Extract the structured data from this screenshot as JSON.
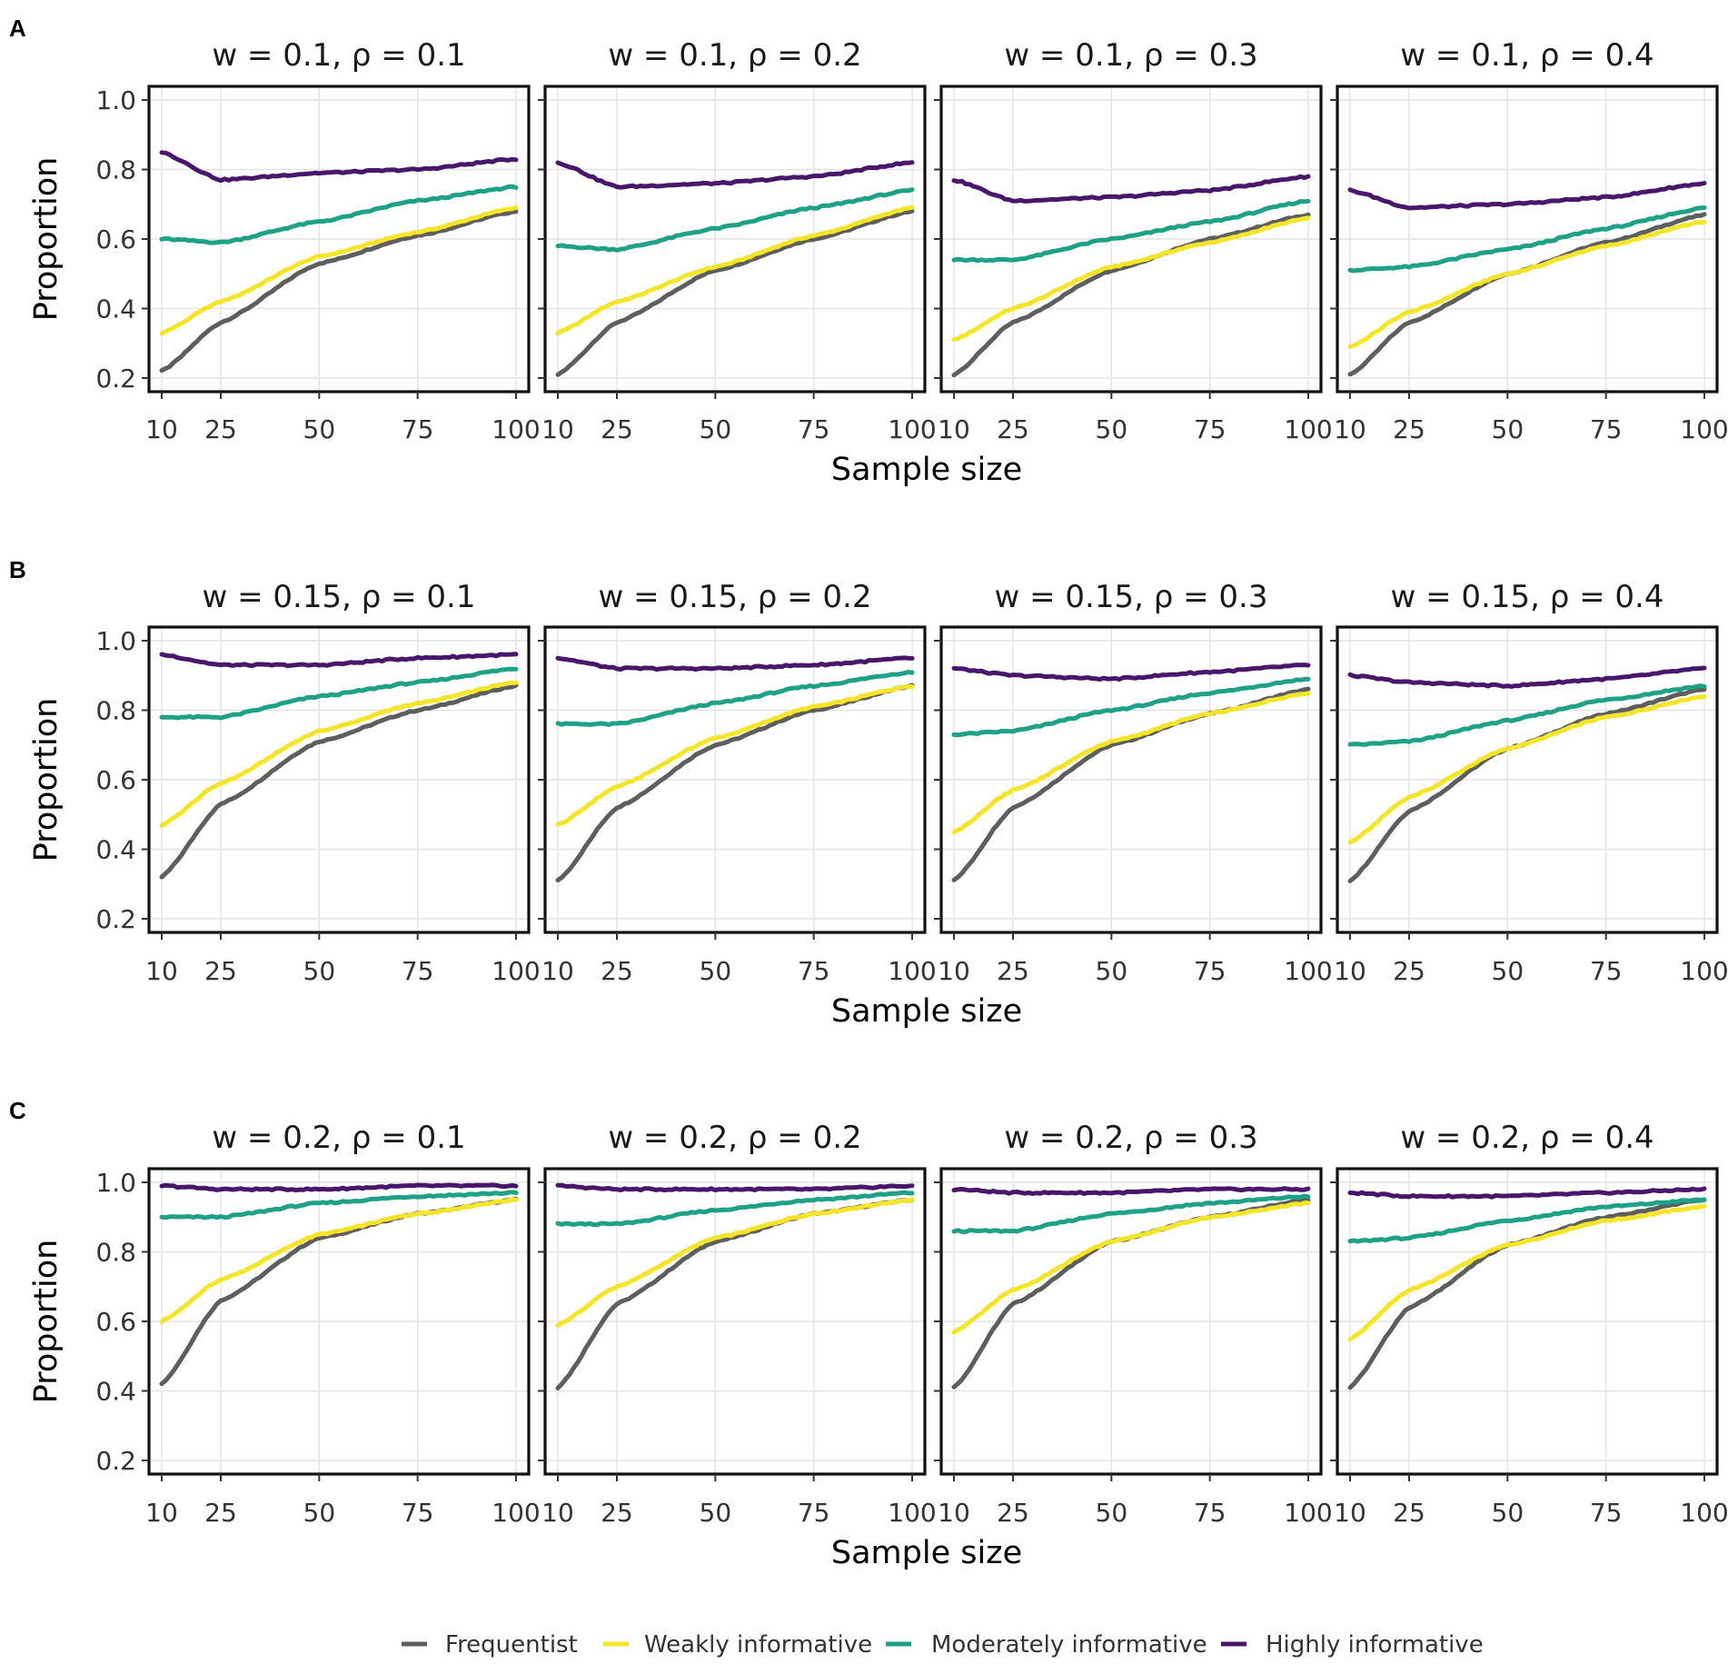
{
  "figure": {
    "panel_letters": [
      "A",
      "B",
      "C"
    ],
    "xlabel": "Sample size",
    "ylabel": "Proportion",
    "legend": [
      {
        "label": "Frequentist",
        "color": "#5e5e5e"
      },
      {
        "label": "Weakly informative",
        "color": "#f4e52a"
      },
      {
        "label": "Moderately informative",
        "color": "#1fa187"
      },
      {
        "label": "Highly informative",
        "color": "#48176c"
      }
    ]
  },
  "chart_data": [
    {
      "type": "line",
      "panel": "A",
      "title": "w = 0.1, ρ = 0.1",
      "xlim": [
        10,
        100
      ],
      "ylim": [
        0.2,
        1.0
      ],
      "x": [
        10,
        25,
        50,
        75,
        100
      ],
      "xticks": [
        "10",
        "25",
        "50",
        "75",
        "100"
      ],
      "yticks": [
        "0.2",
        "0.4",
        "0.6",
        "0.8",
        "1.0"
      ],
      "series": [
        {
          "name": "Frequentist",
          "values": [
            0.22,
            0.36,
            0.53,
            0.61,
            0.68
          ]
        },
        {
          "name": "Weakly informative",
          "values": [
            0.33,
            0.42,
            0.55,
            0.62,
            0.69
          ]
        },
        {
          "name": "Moderately informative",
          "values": [
            0.6,
            0.59,
            0.65,
            0.71,
            0.75
          ]
        },
        {
          "name": "Highly informative",
          "values": [
            0.85,
            0.77,
            0.79,
            0.8,
            0.83
          ]
        }
      ]
    },
    {
      "type": "line",
      "panel": "A",
      "title": "w = 0.1, ρ = 0.2",
      "xlim": [
        10,
        100
      ],
      "ylim": [
        0.2,
        1.0
      ],
      "x": [
        10,
        25,
        50,
        75,
        100
      ],
      "xticks": [
        "10",
        "25",
        "50",
        "75",
        "100"
      ],
      "yticks": [
        "0.2",
        "0.4",
        "0.6",
        "0.8",
        "1.0"
      ],
      "series": [
        {
          "name": "Frequentist",
          "values": [
            0.21,
            0.36,
            0.51,
            0.6,
            0.68
          ]
        },
        {
          "name": "Weakly informative",
          "values": [
            0.33,
            0.42,
            0.52,
            0.61,
            0.69
          ]
        },
        {
          "name": "Moderately informative",
          "values": [
            0.58,
            0.57,
            0.63,
            0.69,
            0.74
          ]
        },
        {
          "name": "Highly informative",
          "values": [
            0.82,
            0.75,
            0.76,
            0.78,
            0.82
          ]
        }
      ]
    },
    {
      "type": "line",
      "panel": "A",
      "title": "w = 0.1, ρ = 0.3",
      "xlim": [
        10,
        100
      ],
      "ylim": [
        0.2,
        1.0
      ],
      "x": [
        10,
        25,
        50,
        75,
        100
      ],
      "xticks": [
        "10",
        "25",
        "50",
        "75",
        "100"
      ],
      "yticks": [
        "0.2",
        "0.4",
        "0.6",
        "0.8",
        "1.0"
      ],
      "series": [
        {
          "name": "Frequentist",
          "values": [
            0.21,
            0.36,
            0.51,
            0.6,
            0.67
          ]
        },
        {
          "name": "Weakly informative",
          "values": [
            0.31,
            0.4,
            0.52,
            0.59,
            0.66
          ]
        },
        {
          "name": "Moderately informative",
          "values": [
            0.54,
            0.54,
            0.6,
            0.65,
            0.71
          ]
        },
        {
          "name": "Highly informative",
          "values": [
            0.77,
            0.71,
            0.72,
            0.74,
            0.78
          ]
        }
      ]
    },
    {
      "type": "line",
      "panel": "A",
      "title": "w = 0.1, ρ = 0.4",
      "xlim": [
        10,
        100
      ],
      "ylim": [
        0.2,
        1.0
      ],
      "x": [
        10,
        25,
        50,
        75,
        100
      ],
      "xticks": [
        "10",
        "25",
        "50",
        "75",
        "100"
      ],
      "yticks": [
        "0.2",
        "0.4",
        "0.6",
        "0.8",
        "1.0"
      ],
      "series": [
        {
          "name": "Frequentist",
          "values": [
            0.21,
            0.36,
            0.5,
            0.59,
            0.67
          ]
        },
        {
          "name": "Weakly informative",
          "values": [
            0.29,
            0.39,
            0.5,
            0.58,
            0.65
          ]
        },
        {
          "name": "Moderately informative",
          "values": [
            0.51,
            0.52,
            0.57,
            0.63,
            0.69
          ]
        },
        {
          "name": "Highly informative",
          "values": [
            0.74,
            0.69,
            0.7,
            0.72,
            0.76
          ]
        }
      ]
    },
    {
      "type": "line",
      "panel": "B",
      "title": "w = 0.15, ρ = 0.1",
      "xlim": [
        10,
        100
      ],
      "ylim": [
        0.2,
        1.0
      ],
      "x": [
        10,
        25,
        50,
        75,
        100
      ],
      "xticks": [
        "10",
        "25",
        "50",
        "75",
        "100"
      ],
      "yticks": [
        "0.2",
        "0.4",
        "0.6",
        "0.8",
        "1.0"
      ],
      "series": [
        {
          "name": "Frequentist",
          "values": [
            0.32,
            0.53,
            0.71,
            0.8,
            0.87
          ]
        },
        {
          "name": "Weakly informative",
          "values": [
            0.47,
            0.59,
            0.74,
            0.82,
            0.88
          ]
        },
        {
          "name": "Moderately informative",
          "values": [
            0.78,
            0.78,
            0.84,
            0.88,
            0.92
          ]
        },
        {
          "name": "Highly informative",
          "values": [
            0.96,
            0.93,
            0.93,
            0.95,
            0.96
          ]
        }
      ]
    },
    {
      "type": "line",
      "panel": "B",
      "title": "w = 0.15, ρ = 0.2",
      "xlim": [
        10,
        100
      ],
      "ylim": [
        0.2,
        1.0
      ],
      "x": [
        10,
        25,
        50,
        75,
        100
      ],
      "xticks": [
        "10",
        "25",
        "50",
        "75",
        "100"
      ],
      "yticks": [
        "0.2",
        "0.4",
        "0.6",
        "0.8",
        "1.0"
      ],
      "series": [
        {
          "name": "Frequentist",
          "values": [
            0.31,
            0.52,
            0.7,
            0.8,
            0.87
          ]
        },
        {
          "name": "Weakly informative",
          "values": [
            0.47,
            0.58,
            0.72,
            0.81,
            0.87
          ]
        },
        {
          "name": "Moderately informative",
          "values": [
            0.76,
            0.76,
            0.82,
            0.87,
            0.91
          ]
        },
        {
          "name": "Highly informative",
          "values": [
            0.95,
            0.92,
            0.92,
            0.93,
            0.95
          ]
        }
      ]
    },
    {
      "type": "line",
      "panel": "B",
      "title": "w = 0.15, ρ = 0.3",
      "xlim": [
        10,
        100
      ],
      "ylim": [
        0.2,
        1.0
      ],
      "x": [
        10,
        25,
        50,
        75,
        100
      ],
      "xticks": [
        "10",
        "25",
        "50",
        "75",
        "100"
      ],
      "yticks": [
        "0.2",
        "0.4",
        "0.6",
        "0.8",
        "1.0"
      ],
      "series": [
        {
          "name": "Frequentist",
          "values": [
            0.31,
            0.52,
            0.7,
            0.79,
            0.86
          ]
        },
        {
          "name": "Weakly informative",
          "values": [
            0.45,
            0.57,
            0.71,
            0.79,
            0.85
          ]
        },
        {
          "name": "Moderately informative",
          "values": [
            0.73,
            0.74,
            0.8,
            0.85,
            0.89
          ]
        },
        {
          "name": "Highly informative",
          "values": [
            0.92,
            0.9,
            0.89,
            0.91,
            0.93
          ]
        }
      ]
    },
    {
      "type": "line",
      "panel": "B",
      "title": "w = 0.15, ρ = 0.4",
      "xlim": [
        10,
        100
      ],
      "ylim": [
        0.2,
        1.0
      ],
      "x": [
        10,
        25,
        50,
        75,
        100
      ],
      "xticks": [
        "10",
        "25",
        "50",
        "75",
        "100"
      ],
      "yticks": [
        "0.2",
        "0.4",
        "0.6",
        "0.8",
        "1.0"
      ],
      "series": [
        {
          "name": "Frequentist",
          "values": [
            0.31,
            0.51,
            0.69,
            0.79,
            0.86
          ]
        },
        {
          "name": "Weakly informative",
          "values": [
            0.42,
            0.55,
            0.69,
            0.78,
            0.84
          ]
        },
        {
          "name": "Moderately informative",
          "values": [
            0.7,
            0.71,
            0.77,
            0.83,
            0.87
          ]
        },
        {
          "name": "Highly informative",
          "values": [
            0.9,
            0.88,
            0.87,
            0.89,
            0.92
          ]
        }
      ]
    },
    {
      "type": "line",
      "panel": "C",
      "title": "w = 0.2, ρ = 0.1",
      "xlim": [
        10,
        100
      ],
      "ylim": [
        0.2,
        1.0
      ],
      "x": [
        10,
        25,
        50,
        75,
        100
      ],
      "xticks": [
        "10",
        "25",
        "50",
        "75",
        "100"
      ],
      "yticks": [
        "0.2",
        "0.4",
        "0.6",
        "0.8",
        "1.0"
      ],
      "series": [
        {
          "name": "Frequentist",
          "values": [
            0.42,
            0.66,
            0.84,
            0.91,
            0.95
          ]
        },
        {
          "name": "Weakly informative",
          "values": [
            0.6,
            0.72,
            0.85,
            0.91,
            0.95
          ]
        },
        {
          "name": "Moderately informative",
          "values": [
            0.9,
            0.9,
            0.94,
            0.96,
            0.97
          ]
        },
        {
          "name": "Highly informative",
          "values": [
            0.99,
            0.98,
            0.98,
            0.99,
            0.99
          ]
        }
      ]
    },
    {
      "type": "line",
      "panel": "C",
      "title": "w = 0.2, ρ = 0.2",
      "xlim": [
        10,
        100
      ],
      "ylim": [
        0.2,
        1.0
      ],
      "x": [
        10,
        25,
        50,
        75,
        100
      ],
      "xticks": [
        "10",
        "25",
        "50",
        "75",
        "100"
      ],
      "yticks": [
        "0.2",
        "0.4",
        "0.6",
        "0.8",
        "1.0"
      ],
      "series": [
        {
          "name": "Frequentist",
          "values": [
            0.41,
            0.65,
            0.83,
            0.91,
            0.95
          ]
        },
        {
          "name": "Weakly informative",
          "values": [
            0.59,
            0.7,
            0.84,
            0.91,
            0.95
          ]
        },
        {
          "name": "Moderately informative",
          "values": [
            0.88,
            0.88,
            0.92,
            0.95,
            0.97
          ]
        },
        {
          "name": "Highly informative",
          "values": [
            0.99,
            0.98,
            0.98,
            0.98,
            0.99
          ]
        }
      ]
    },
    {
      "type": "line",
      "panel": "C",
      "title": "w = 0.2, ρ = 0.3",
      "xlim": [
        10,
        100
      ],
      "ylim": [
        0.2,
        1.0
      ],
      "x": [
        10,
        25,
        50,
        75,
        100
      ],
      "xticks": [
        "10",
        "25",
        "50",
        "75",
        "100"
      ],
      "yticks": [
        "0.2",
        "0.4",
        "0.6",
        "0.8",
        "1.0"
      ],
      "series": [
        {
          "name": "Frequentist",
          "values": [
            0.41,
            0.65,
            0.83,
            0.9,
            0.95
          ]
        },
        {
          "name": "Weakly informative",
          "values": [
            0.57,
            0.69,
            0.83,
            0.9,
            0.94
          ]
        },
        {
          "name": "Moderately informative",
          "values": [
            0.86,
            0.86,
            0.91,
            0.94,
            0.96
          ]
        },
        {
          "name": "Highly informative",
          "values": [
            0.98,
            0.97,
            0.97,
            0.98,
            0.98
          ]
        }
      ]
    },
    {
      "type": "line",
      "panel": "C",
      "title": "w = 0.2, ρ = 0.4",
      "xlim": [
        10,
        100
      ],
      "ylim": [
        0.2,
        1.0
      ],
      "x": [
        10,
        25,
        50,
        75,
        100
      ],
      "xticks": [
        "10",
        "25",
        "50",
        "75",
        "100"
      ],
      "yticks": [
        "0.2",
        "0.4",
        "0.6",
        "0.8",
        "1.0"
      ],
      "series": [
        {
          "name": "Frequentist",
          "values": [
            0.41,
            0.64,
            0.82,
            0.9,
            0.95
          ]
        },
        {
          "name": "Weakly informative",
          "values": [
            0.55,
            0.69,
            0.82,
            0.89,
            0.93
          ]
        },
        {
          "name": "Moderately informative",
          "values": [
            0.83,
            0.84,
            0.89,
            0.93,
            0.95
          ]
        },
        {
          "name": "Highly informative",
          "values": [
            0.97,
            0.96,
            0.96,
            0.97,
            0.98
          ]
        }
      ]
    }
  ]
}
